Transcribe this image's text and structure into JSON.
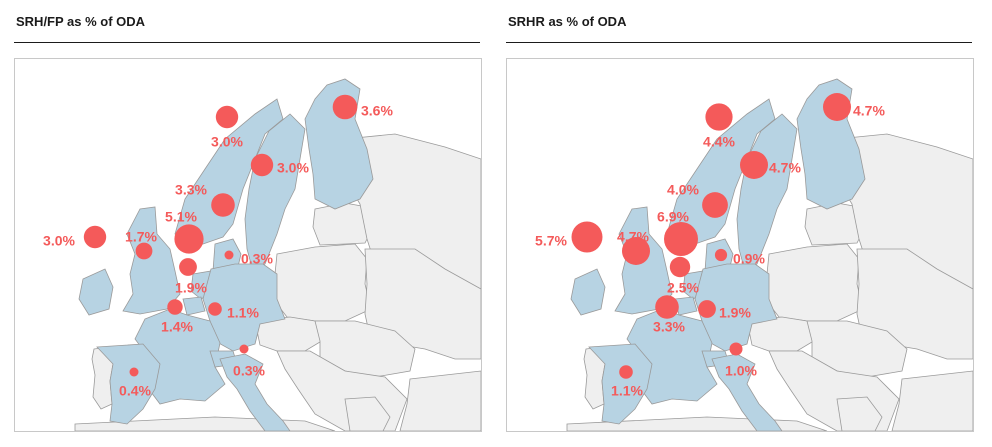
{
  "panels": [
    {
      "id": "srh-fp",
      "title": "SRH/FP as % of ODA",
      "colors": {
        "donor": "#b7d3e3",
        "other": "#efefef",
        "border": "#9a9a9a",
        "bubble": "#f45a5a"
      },
      "donors": [
        {
          "key": "norway",
          "label": "3.0%",
          "value": 3.0
        },
        {
          "key": "sweden",
          "label": "3.0%",
          "value": 3.0
        },
        {
          "key": "finland",
          "label": "3.6%",
          "value": 3.6
        },
        {
          "key": "denmark",
          "label": "3.3%",
          "value": 3.3
        },
        {
          "key": "netherlands",
          "label": "5.1%",
          "value": 5.1
        },
        {
          "key": "ireland",
          "label": "3.0%",
          "value": 3.0
        },
        {
          "key": "uk",
          "label": "1.7%",
          "value": 1.7
        },
        {
          "key": "germany",
          "label": "0.3%",
          "value": 0.3
        },
        {
          "key": "belgium",
          "label": "1.9%",
          "value": 1.9
        },
        {
          "key": "france",
          "label": "1.4%",
          "value": 1.4
        },
        {
          "key": "switzerland",
          "label": "1.1%",
          "value": 1.1
        },
        {
          "key": "italy",
          "label": "0.3%",
          "value": 0.3
        },
        {
          "key": "spain",
          "label": "0.4%",
          "value": 0.4
        }
      ]
    },
    {
      "id": "srhr",
      "title": "SRHR as % of ODA",
      "colors": {
        "donor": "#b7d3e3",
        "other": "#efefef",
        "border": "#9a9a9a",
        "bubble": "#f45a5a"
      },
      "donors": [
        {
          "key": "norway",
          "label": "4.4%",
          "value": 4.4
        },
        {
          "key": "sweden",
          "label": "4.7%",
          "value": 4.7
        },
        {
          "key": "finland",
          "label": "4.7%",
          "value": 4.7
        },
        {
          "key": "denmark",
          "label": "4.0%",
          "value": 4.0
        },
        {
          "key": "netherlands",
          "label": "6.9%",
          "value": 6.9
        },
        {
          "key": "ireland",
          "label": "5.7%",
          "value": 5.7
        },
        {
          "key": "uk",
          "label": "4.7%",
          "value": 4.7
        },
        {
          "key": "germany",
          "label": "0.9%",
          "value": 0.9
        },
        {
          "key": "belgium",
          "label": "2.5%",
          "value": 2.5
        },
        {
          "key": "france",
          "label": "3.3%",
          "value": 3.3
        },
        {
          "key": "switzerland",
          "label": "1.9%",
          "value": 1.9
        },
        {
          "key": "italy",
          "label": "1.0%",
          "value": 1.0
        },
        {
          "key": "spain",
          "label": "1.1%",
          "value": 1.1
        }
      ]
    }
  ]
}
